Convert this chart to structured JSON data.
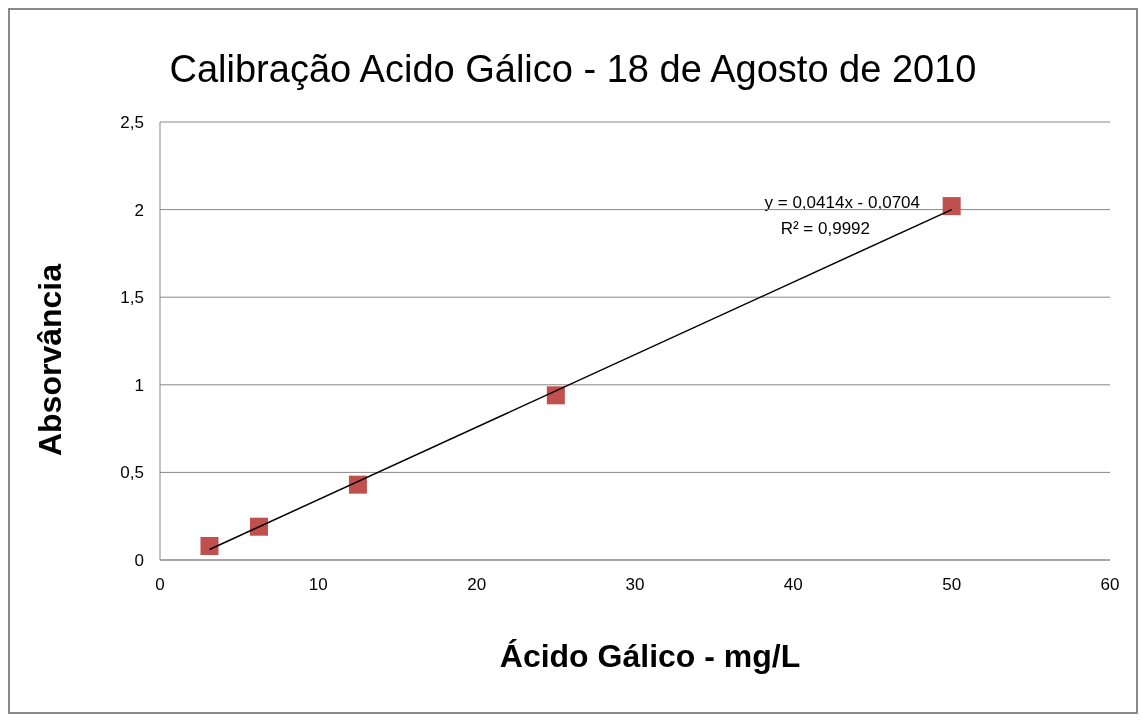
{
  "chart_data": {
    "type": "scatter",
    "title": "Calibração Acido Gálico - 18 de Agosto de 2010",
    "xlabel": "Ácido Gálico - mg/L",
    "ylabel": "Absorvância",
    "series": [
      {
        "color": "#c0504d",
        "marker": "square",
        "x": [
          3.125,
          6.25,
          12.5,
          25,
          50
        ],
        "values": [
          0.08,
          0.19,
          0.43,
          0.94,
          2.02
        ]
      },
      {
        "type": "line",
        "color": "#000000",
        "marker": "none",
        "line_style": "solid",
        "x": [
          3.125,
          50
        ],
        "values": [
          0.06,
          2
        ]
      }
    ],
    "xlim": [
      0,
      60
    ],
    "xticks": [
      0,
      10,
      20,
      30,
      40,
      50,
      60
    ],
    "ylim": [
      0,
      2.5
    ],
    "yticks": [
      0,
      {
        "value": 0.5,
        "label": "0,5"
      },
      1,
      {
        "value": 1.5,
        "label": "1,5"
      },
      2,
      {
        "value": 2.5,
        "label": "2,5"
      }
    ],
    "grid": "y",
    "annotations": [
      "y = 0,0414x - 0,0704",
      "R² = 0,9992"
    ]
  }
}
